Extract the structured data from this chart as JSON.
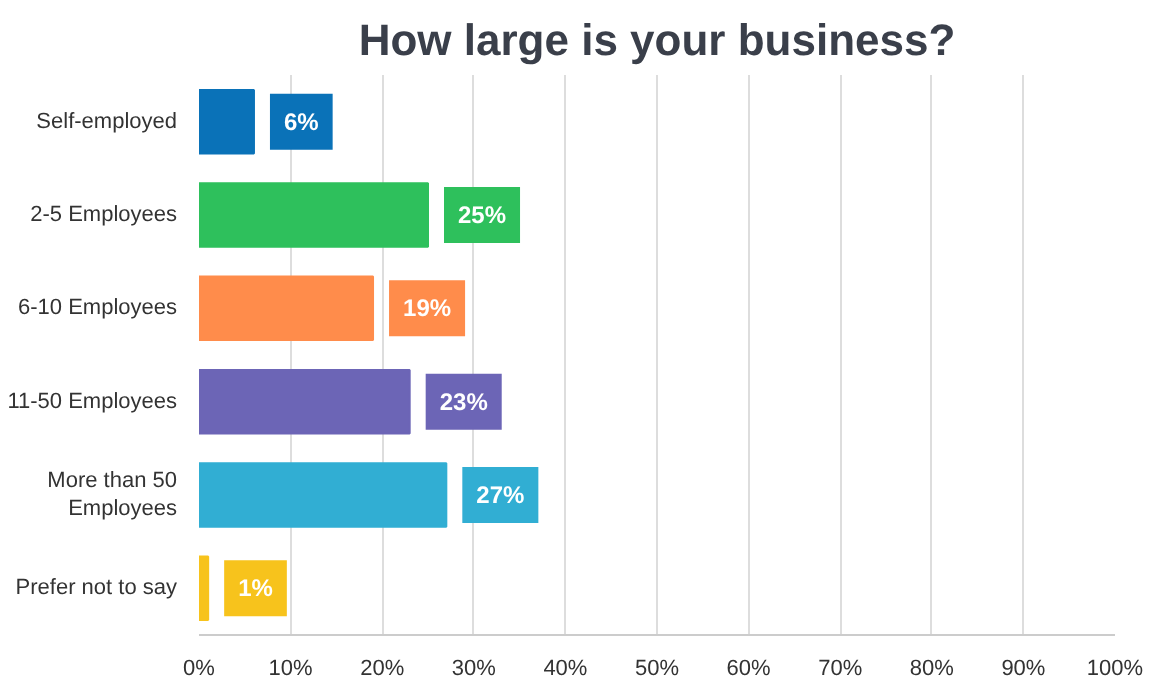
{
  "chart_data": {
    "type": "bar",
    "orientation": "horizontal",
    "title": "How large is your business?",
    "categories": [
      "Self-employed",
      "2-5 Employees",
      "6-10 Employees",
      "11-50 Employees",
      "More than 50 Employees",
      "Prefer not to say"
    ],
    "values": [
      6,
      25,
      19,
      23,
      27,
      1
    ],
    "colors": [
      "#0a72b8",
      "#2ec05c",
      "#ff8c4b",
      "#6c65b6",
      "#31aed3",
      "#f7c31c"
    ],
    "value_labels": [
      "6%",
      "25%",
      "19%",
      "23%",
      "27%",
      "1%"
    ],
    "xlim": [
      0,
      100
    ],
    "xticks": [
      {
        "value": 0,
        "label": "0%"
      },
      {
        "value": 10,
        "label": "10%"
      },
      {
        "value": 20,
        "label": "20%"
      },
      {
        "value": 30,
        "label": "30%"
      },
      {
        "value": 40,
        "label": "40%"
      },
      {
        "value": 50,
        "label": "50%"
      },
      {
        "value": 60,
        "label": "60%"
      },
      {
        "value": 70,
        "label": "70%"
      },
      {
        "value": 80,
        "label": "80%"
      },
      {
        "value": 90,
        "label": "90%"
      },
      {
        "value": 100,
        "label": "100%"
      }
    ],
    "grid": "x"
  }
}
